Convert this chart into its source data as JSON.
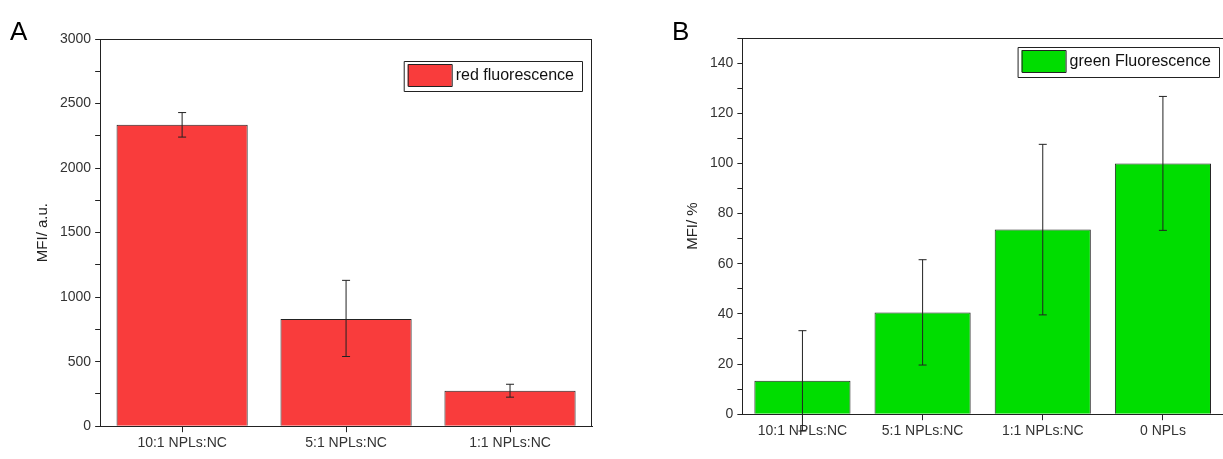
{
  "chart_data": [
    {
      "type": "bar",
      "annotations": [
        "A"
      ],
      "ylabel": "MFI/ a.u.",
      "categories": [
        "10:1 NPLs:NC",
        "5:1 NPLs:NC",
        "1:1 NPLs:NC"
      ],
      "series": [
        {
          "name": "red fluorescence",
          "color": "#f93c3c",
          "values": [
            2335,
            830,
            275
          ],
          "errors": [
            [
              2240,
              2430
            ],
            [
              540,
              1130
            ],
            [
              225,
              325
            ]
          ]
        }
      ],
      "ylim": [
        0,
        3000
      ],
      "yticks": [
        0,
        {
          "value": 250,
          "label": null
        },
        500,
        {
          "value": 750,
          "label": null
        },
        1000,
        {
          "value": 1250,
          "label": null
        },
        1500,
        {
          "value": 1750,
          "label": null
        },
        2000,
        {
          "value": 2250,
          "label": null
        },
        2500,
        {
          "value": 2750,
          "label": null
        },
        3000
      ],
      "grid": false,
      "legend": "top right"
    },
    {
      "type": "bar",
      "annotations": [
        "B"
      ],
      "ylabel": "MFI/ %",
      "categories": [
        "10:1 NPLs:NC",
        "5:1 NPLs:NC",
        "1:1 NPLs:NC",
        "0 NPLs"
      ],
      "series": [
        {
          "name": "green Fluorescence",
          "color": "#00dd00",
          "values": [
            13.3,
            40.6,
            73.6,
            100
          ],
          "errors": [
            20,
            21,
            34,
            26.7
          ]
        }
      ],
      "ylim": [
        0,
        150
      ],
      "yticks": [
        0,
        {
          "value": 10,
          "label": null
        },
        20,
        {
          "value": 30,
          "label": null
        },
        40,
        {
          "value": 50,
          "label": null
        },
        60,
        {
          "value": 70,
          "label": null
        },
        80,
        {
          "value": 90,
          "label": null
        },
        100,
        {
          "value": 110,
          "label": null
        },
        120,
        {
          "value": 130,
          "label": null
        },
        140,
        {
          "value": 150,
          "label": null
        }
      ],
      "grid": false,
      "legend": "top right"
    }
  ]
}
